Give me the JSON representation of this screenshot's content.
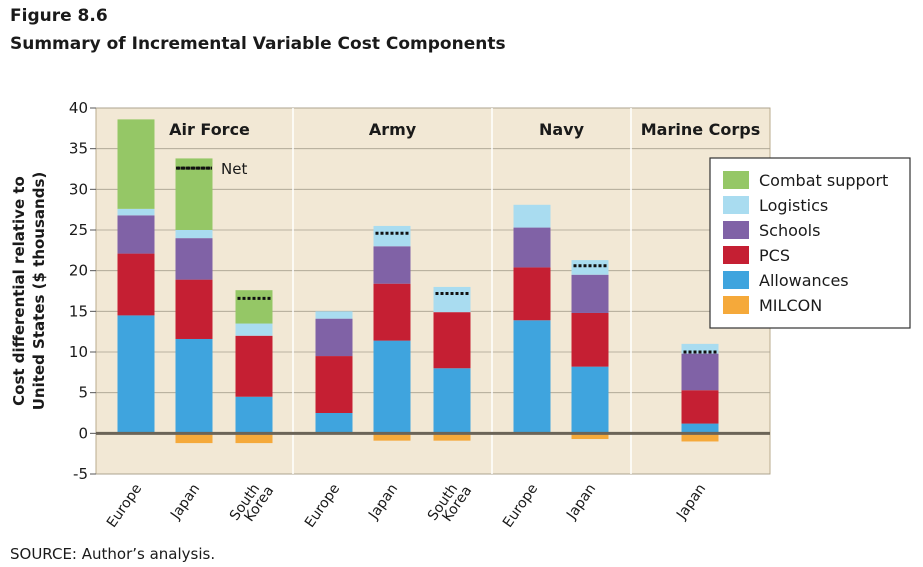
{
  "figure_label": "Figure 8.6",
  "title": "Summary of Incremental Variable Cost Components",
  "source": "SOURCE: Author’s analysis.",
  "chart_data": {
    "type": "bar",
    "stacked": true,
    "ylabel_lines": [
      "Cost differential relative to",
      "United States ($ thousands)"
    ],
    "ylim": [
      -5,
      40
    ],
    "yticks": [
      -5,
      0,
      5,
      10,
      15,
      20,
      25,
      30,
      35,
      40
    ],
    "grid": true,
    "legend_position": "right",
    "colors": {
      "Combat support": "#95c766",
      "Logistics": "#a9dcf0",
      "Schools": "#8062a6",
      "PCS": "#c51f33",
      "Allowances": "#3fa4de",
      "MILCON": "#f5a93a",
      "plot_bg": "#f2e8d5",
      "zero_line": "#6b6457"
    },
    "groups": [
      {
        "name": "Air Force",
        "categories": [
          {
            "label": [
              "Europe"
            ],
            "values": {
              "MILCON": 0,
              "Allowances": 14.5,
              "PCS": 7.6,
              "Schools": 4.7,
              "Logistics": 0.8,
              "Combat support": 11.0
            },
            "net": null
          },
          {
            "label": [
              "Japan"
            ],
            "values": {
              "MILCON": -1.2,
              "Allowances": 11.6,
              "PCS": 7.3,
              "Schools": 5.1,
              "Logistics": 1.0,
              "Combat support": 8.8
            },
            "net": 32.6
          },
          {
            "label": [
              "South",
              "Korea"
            ],
            "values": {
              "MILCON": -1.2,
              "Allowances": 4.5,
              "PCS": 7.5,
              "Schools": 0,
              "Logistics": 1.5,
              "Combat support": 4.1
            },
            "net": 16.6
          }
        ]
      },
      {
        "name": "Army",
        "categories": [
          {
            "label": [
              "Europe"
            ],
            "values": {
              "MILCON": 0,
              "Allowances": 2.5,
              "PCS": 7.0,
              "Schools": 4.6,
              "Logistics": 0.9,
              "Combat support": 0
            },
            "net": null
          },
          {
            "label": [
              "Japan"
            ],
            "values": {
              "MILCON": -0.9,
              "Allowances": 11.4,
              "PCS": 7.0,
              "Schools": 4.6,
              "Logistics": 2.5,
              "Combat support": 0
            },
            "net": 24.6
          },
          {
            "label": [
              "South",
              "Korea"
            ],
            "values": {
              "MILCON": -0.9,
              "Allowances": 8.0,
              "PCS": 6.9,
              "Schools": 0,
              "Logistics": 3.1,
              "Combat support": 0
            },
            "net": 17.2
          }
        ]
      },
      {
        "name": "Navy",
        "categories": [
          {
            "label": [
              "Europe"
            ],
            "values": {
              "MILCON": 0,
              "Allowances": 13.9,
              "PCS": 6.5,
              "Schools": 4.9,
              "Logistics": 2.8,
              "Combat support": 0
            },
            "net": null
          },
          {
            "label": [
              "Japan"
            ],
            "values": {
              "MILCON": -0.7,
              "Allowances": 8.2,
              "PCS": 6.6,
              "Schools": 4.7,
              "Logistics": 1.8,
              "Combat support": 0
            },
            "net": 20.6
          }
        ]
      },
      {
        "name": "Marine Corps",
        "categories": [
          {
            "label": [
              "Japan"
            ],
            "values": {
              "MILCON": -1.0,
              "Allowances": 1.2,
              "PCS": 4.1,
              "Schools": 4.5,
              "Logistics": 1.2,
              "Combat support": 0
            },
            "net": 10.0
          }
        ]
      }
    ],
    "legend": [
      "Combat support",
      "Logistics",
      "Schools",
      "PCS",
      "Allowances",
      "MILCON"
    ],
    "net_label": "Net"
  }
}
